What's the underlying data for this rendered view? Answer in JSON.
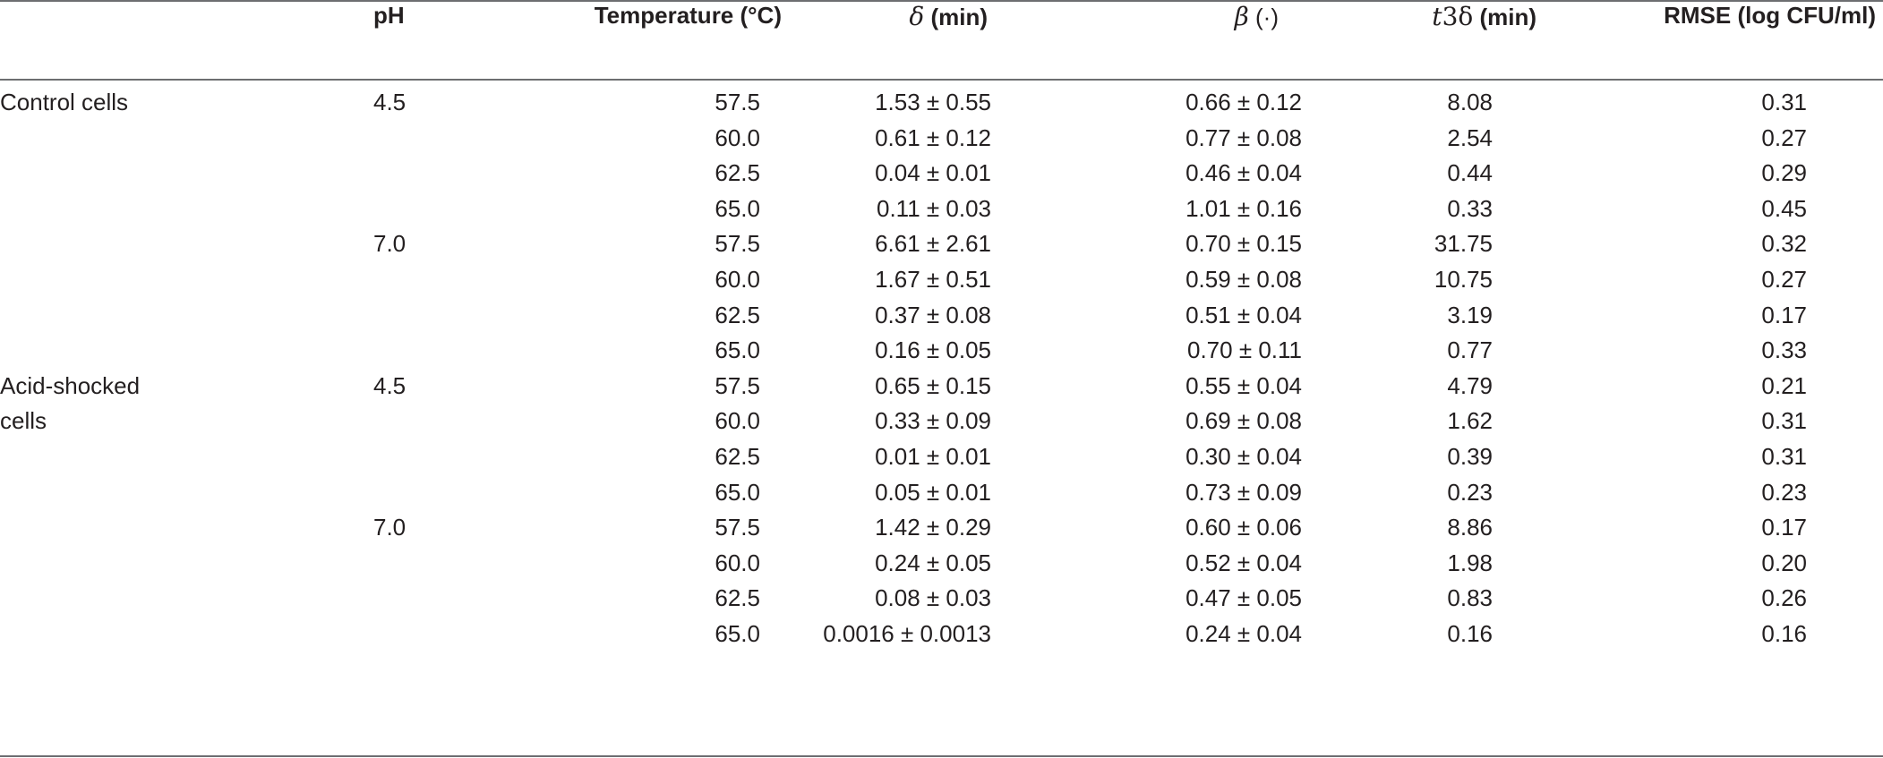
{
  "headers": {
    "group": "",
    "ph": "pH",
    "temperature": "Temperature (°C)",
    "delta_symbol": "δ",
    "delta_unit": " (min)",
    "beta_symbol": "β",
    "beta_unit": " (·)",
    "t3delta_t": "t",
    "t3delta_sub": "3δ",
    "t3delta_unit": " (min)",
    "rmse": "RMSE (log CFU/ml)"
  },
  "rows": [
    {
      "group": "Control cells",
      "ph": "4.5",
      "temp": "57.5",
      "delta": "1.53 ± 0.55",
      "beta": "0.66 ± 0.12",
      "t3d": "8.08",
      "rmse": "0.31"
    },
    {
      "group": "",
      "ph": "",
      "temp": "60.0",
      "delta": "0.61 ± 0.12",
      "beta": "0.77 ± 0.08",
      "t3d": "2.54",
      "rmse": "0.27"
    },
    {
      "group": "",
      "ph": "",
      "temp": "62.5",
      "delta": "0.04 ± 0.01",
      "beta": "0.46 ± 0.04",
      "t3d": "0.44",
      "rmse": "0.29"
    },
    {
      "group": "",
      "ph": "",
      "temp": "65.0",
      "delta": "0.11 ± 0.03",
      "beta": "1.01 ± 0.16",
      "t3d": "0.33",
      "rmse": "0.45"
    },
    {
      "group": "",
      "ph": "7.0",
      "temp": "57.5",
      "delta": "6.61 ± 2.61",
      "beta": "0.70 ± 0.15",
      "t3d": "31.75",
      "rmse": "0.32"
    },
    {
      "group": "",
      "ph": "",
      "temp": "60.0",
      "delta": "1.67 ± 0.51",
      "beta": "0.59 ± 0.08",
      "t3d": "10.75",
      "rmse": "0.27"
    },
    {
      "group": "",
      "ph": "",
      "temp": "62.5",
      "delta": "0.37 ± 0.08",
      "beta": "0.51 ± 0.04",
      "t3d": "3.19",
      "rmse": "0.17"
    },
    {
      "group": "",
      "ph": "",
      "temp": "65.0",
      "delta": "0.16 ± 0.05",
      "beta": "0.70 ± 0.11",
      "t3d": "0.77",
      "rmse": "0.33"
    },
    {
      "group": "Acid-shocked cells",
      "ph": "4.5",
      "temp": "57.5",
      "delta": "0.65 ± 0.15",
      "beta": "0.55 ± 0.04",
      "t3d": "4.79",
      "rmse": "0.21"
    },
    {
      "group": "",
      "ph": "",
      "temp": "60.0",
      "delta": "0.33 ± 0.09",
      "beta": "0.69 ± 0.08",
      "t3d": "1.62",
      "rmse": "0.31"
    },
    {
      "group": "",
      "ph": "",
      "temp": "62.5",
      "delta": "0.01 ± 0.01",
      "beta": "0.30 ± 0.04",
      "t3d": "0.39",
      "rmse": "0.31"
    },
    {
      "group": "",
      "ph": "",
      "temp": "65.0",
      "delta": "0.05 ± 0.01",
      "beta": "0.73 ± 0.09",
      "t3d": "0.23",
      "rmse": "0.23"
    },
    {
      "group": "",
      "ph": "7.0",
      "temp": "57.5",
      "delta": "1.42 ± 0.29",
      "beta": "0.60 ± 0.06",
      "t3d": "8.86",
      "rmse": "0.17"
    },
    {
      "group": "",
      "ph": "",
      "temp": "60.0",
      "delta": "0.24 ± 0.05",
      "beta": "0.52 ± 0.04",
      "t3d": "1.98",
      "rmse": "0.20"
    },
    {
      "group": "",
      "ph": "",
      "temp": "62.5",
      "delta": "0.08 ± 0.03",
      "beta": "0.47 ± 0.05",
      "t3d": "0.83",
      "rmse": "0.26"
    },
    {
      "group": "",
      "ph": "",
      "temp": "65.0",
      "delta": "0.0016 ± 0.0013",
      "beta": "0.24 ± 0.04",
      "t3d": "0.16",
      "rmse": "0.16"
    }
  ]
}
